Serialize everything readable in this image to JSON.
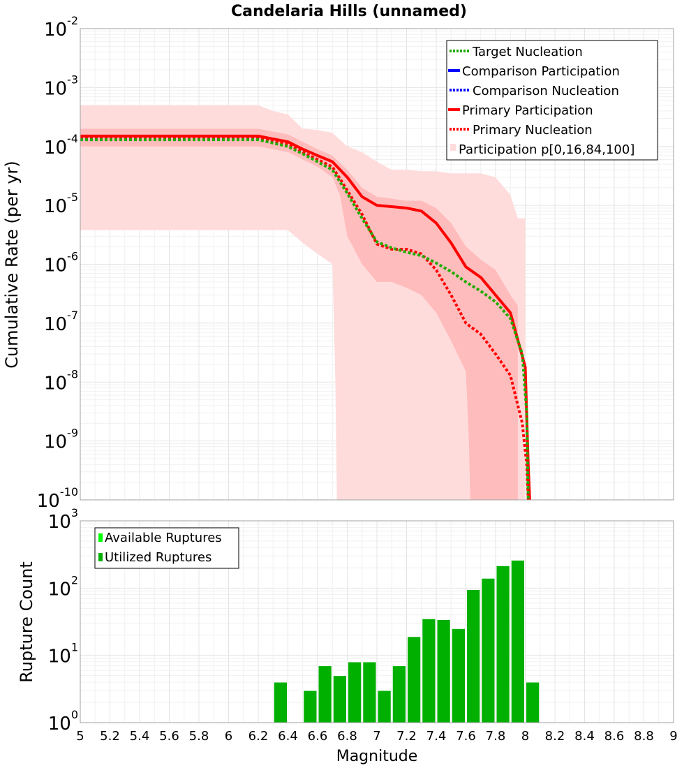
{
  "chart_data": [
    {
      "type": "line",
      "title": "Candelaria Hills (unnamed)",
      "xlabel": "",
      "ylabel": "Cumulative Rate (per yr)",
      "xlim": [
        5,
        9
      ],
      "ylim_exponents": [
        -10,
        -2
      ],
      "yscale": "log",
      "grid": true,
      "legend_position": "top-right",
      "y_tick_labels": [
        "10^-10",
        "10^-9",
        "10^-8",
        "10^-7",
        "10^-6",
        "10^-5",
        "10^-4",
        "10^-3",
        "10^-2"
      ],
      "legend": [
        {
          "label": "Target Nucleation",
          "color": "#22aa00",
          "style": "dotted"
        },
        {
          "label": "Comparison Participation",
          "color": "#0000ff",
          "style": "solid"
        },
        {
          "label": "Comparison Nucleation",
          "color": "#0000ff",
          "style": "dotted"
        },
        {
          "label": "Primary Participation",
          "color": "#ff0000",
          "style": "solid"
        },
        {
          "label": "Primary Nucleation",
          "color": "#ff0000",
          "style": "dotted"
        },
        {
          "label": "Participation p[0,16,84,100]",
          "color": "#ffd0d0",
          "style": "fill"
        }
      ],
      "series": [
        {
          "name": "Primary Participation",
          "x": [
            5.0,
            6.2,
            6.4,
            6.5,
            6.6,
            6.7,
            6.8,
            6.9,
            7.0,
            7.1,
            7.2,
            7.3,
            7.4,
            7.5,
            7.6,
            7.7,
            7.8,
            7.9,
            8.0,
            8.02,
            8.03
          ],
          "y": [
            0.00015,
            0.00015,
            0.00012,
            9e-05,
            7e-05,
            5.5e-05,
            3e-05,
            1.4e-05,
            1e-05,
            9.5e-06,
            9e-06,
            8e-06,
            5e-06,
            2.3e-06,
            9e-07,
            6e-07,
            3e-07,
            1.5e-07,
            1.8e-08,
            4e-10,
            1e-10
          ]
        },
        {
          "name": "Primary Nucleation",
          "x": [
            5.0,
            6.2,
            6.4,
            6.5,
            6.6,
            6.7,
            6.8,
            6.9,
            7.0,
            7.1,
            7.2,
            7.3,
            7.4,
            7.5,
            7.6,
            7.7,
            7.8,
            7.9,
            7.98,
            8.01,
            8.02
          ],
          "y": [
            0.000135,
            0.000135,
            0.00011,
            8e-05,
            6e-05,
            4.5e-05,
            1.8e-05,
            7e-06,
            2.2e-06,
            1.8e-06,
            1.8e-06,
            1.5e-06,
            8e-07,
            3e-07,
            1e-07,
            6.5e-08,
            3e-08,
            1.3e-08,
            2e-09,
            4e-10,
            1e-10
          ]
        },
        {
          "name": "Target Nucleation",
          "x": [
            5.0,
            6.2,
            6.4,
            6.5,
            6.6,
            6.7,
            6.8,
            6.9,
            7.0,
            7.1,
            7.2,
            7.3,
            7.4,
            7.5,
            7.6,
            7.7,
            7.8,
            7.9,
            7.98,
            8.01,
            8.02
          ],
          "y": [
            0.00013,
            0.00013,
            0.0001,
            7.5e-05,
            5.5e-05,
            4e-05,
            1.6e-05,
            6e-06,
            2.4e-06,
            1.9e-06,
            1.6e-06,
            1.4e-06,
            1.05e-06,
            7.5e-07,
            5e-07,
            3.5e-07,
            2.3e-07,
            1.2e-07,
            3e-08,
            3e-09,
            1e-10
          ]
        }
      ],
      "bands": {
        "outer": {
          "upper_x": [
            5.0,
            6.2,
            6.3,
            6.4,
            6.5,
            6.6,
            6.7,
            6.8,
            6.9,
            7.0,
            7.1,
            7.2,
            7.3,
            7.4,
            7.5,
            7.6,
            7.7,
            7.8,
            7.9,
            7.95,
            8.0
          ],
          "upper_y": [
            0.0005,
            0.0005,
            0.0004,
            0.00035,
            0.0002,
            0.00019,
            0.00017,
            0.0001,
            8e-05,
            5.5e-05,
            4e-05,
            4e-05,
            3.8e-05,
            3.8e-05,
            3.5e-05,
            3.5e-05,
            3.5e-05,
            3e-05,
            1.5e-05,
            6e-06,
            6e-06
          ],
          "lower_x": [
            5.0,
            6.2,
            6.4,
            6.5,
            6.6,
            6.7,
            6.72,
            6.73
          ],
          "lower_y": [
            3.8e-06,
            3.8e-06,
            3.8e-06,
            2.3e-06,
            1.5e-06,
            1e-06,
            1e-08,
            1e-10
          ]
        },
        "inner": {
          "upper_x": [
            5.0,
            6.2,
            6.4,
            6.5,
            6.6,
            6.7,
            6.8,
            6.9,
            7.0,
            7.1,
            7.2,
            7.3,
            7.4,
            7.5,
            7.6,
            7.7,
            7.8,
            7.9,
            7.95
          ],
          "upper_y": [
            0.0002,
            0.0002,
            0.00016,
            0.00012,
            9e-05,
            7e-05,
            4e-05,
            2e-05,
            1.4e-05,
            1.3e-05,
            1.2e-05,
            1.2e-05,
            9e-06,
            5e-06,
            2e-06,
            1.2e-06,
            8e-07,
            3e-07,
            2e-07
          ],
          "lower_x": [
            5.0,
            6.2,
            6.4,
            6.5,
            6.6,
            6.7,
            6.75,
            6.8,
            6.9,
            7.0,
            7.1,
            7.2,
            7.3,
            7.4,
            7.5,
            7.6,
            7.62,
            7.63
          ],
          "lower_y": [
            0.0001,
            0.0001,
            8e-05,
            6e-05,
            4.5e-05,
            3e-05,
            1.5e-05,
            3e-06,
            1e-06,
            5e-07,
            5e-07,
            4e-07,
            3e-07,
            1.5e-07,
            5e-08,
            1.5e-08,
            1e-09,
            1e-10
          ]
        }
      }
    },
    {
      "type": "bar",
      "title": "",
      "xlabel": "Magnitude",
      "ylabel": "Rupture Count",
      "xlim": [
        5,
        9
      ],
      "ylim_exponents": [
        0,
        3
      ],
      "yscale": "log",
      "grid": true,
      "legend_position": "top-left",
      "y_tick_labels": [
        "10^0",
        "10^1",
        "10^2",
        "10^3"
      ],
      "x_tick_labels": [
        "5",
        "5.2",
        "5.4",
        "5.6",
        "5.8",
        "6",
        "6.2",
        "6.4",
        "6.6",
        "6.8",
        "7",
        "7.2",
        "7.4",
        "7.6",
        "7.8",
        "8",
        "8.2",
        "8.4",
        "8.6",
        "8.8",
        "9"
      ],
      "legend": [
        {
          "label": "Available Ruptures",
          "color": "#00ff00"
        },
        {
          "label": "Utilized Ruptures",
          "color": "#00b000"
        }
      ],
      "bin_width": 0.1,
      "series": [
        {
          "name": "Utilized Ruptures",
          "x": [
            6.35,
            6.55,
            6.65,
            6.75,
            6.85,
            6.95,
            7.05,
            7.15,
            7.25,
            7.35,
            7.45,
            7.55,
            7.65,
            7.75,
            7.85,
            7.95,
            8.05
          ],
          "values": [
            4,
            3,
            7,
            5,
            8,
            8,
            3,
            7,
            19,
            35,
            34,
            25,
            95,
            140,
            215,
            260,
            4
          ]
        }
      ]
    }
  ],
  "colors": {
    "frame": "#a0a0a0",
    "grid_major": "#e4e4e4",
    "grid_minor": "#f0f0f0",
    "band_outer": "#ffdcdc",
    "band_inner": "#ffbcbc",
    "primary": "#ff0000",
    "target": "#22aa00",
    "bar_fill": "#00b000",
    "bar_edge": "#ffffff"
  }
}
